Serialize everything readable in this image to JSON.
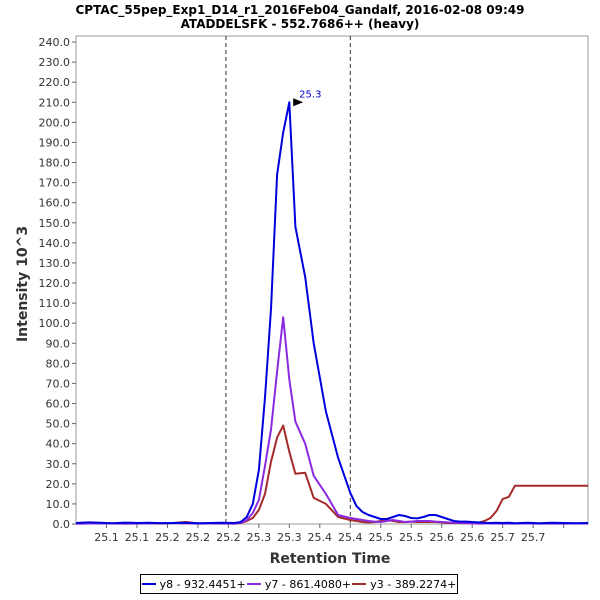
{
  "chart_data": {
    "type": "line",
    "title": "CPTAC_55pep_Exp1_D14_r1_2016Feb04_Gandalf, 2016-02-08 09:49",
    "subtitle": "ATADDELSFK - 552.7686++ (heavy)",
    "xlabel": "Retention Time",
    "ylabel": "Intensity 10^3",
    "xlim": [
      25.0,
      25.84
    ],
    "ylim": [
      0,
      243
    ],
    "x_tick_values": [
      25.05,
      25.1,
      25.15,
      25.2,
      25.25,
      25.3,
      25.35,
      25.4,
      25.45,
      25.5,
      25.55,
      25.6,
      25.65,
      25.7,
      25.75,
      25.8
    ],
    "x_tick_labels": [
      "25.1",
      "25.1",
      "25.2",
      "25.2",
      "25.2",
      "25.3",
      "25.3",
      "25.4",
      "25.4",
      "25.5",
      "25.5",
      "25.6",
      "25.6",
      "25.7",
      "25.7",
      ""
    ],
    "y_ticks": [
      0,
      10,
      20,
      30,
      40,
      50,
      60,
      70,
      80,
      90,
      100,
      110,
      120,
      130,
      140,
      150,
      160,
      170,
      180,
      190,
      200,
      210,
      220,
      230,
      240
    ],
    "y_tick_labels": [
      "0.0",
      "10.0",
      "20.0",
      "30.0",
      "40.0",
      "50.0",
      "60.0",
      "70.0",
      "80.0",
      "90.0",
      "100.0",
      "110.0",
      "120.0",
      "130.0",
      "140.0",
      "150.0",
      "160.0",
      "170.0",
      "180.0",
      "190.0",
      "200.0",
      "210.0",
      "220.0",
      "230.0",
      "240.0"
    ],
    "grid": false,
    "legend_position": "bottom",
    "vertical_lines": [
      25.246,
      25.45
    ],
    "peak_annotation": {
      "x": 25.376,
      "y": 210,
      "text": "25.3"
    },
    "series": [
      {
        "name": "y8 - 932.4451+",
        "color": "#0000dd",
        "x": [
          25.0,
          25.02,
          25.04,
          25.06,
          25.08,
          25.1,
          25.12,
          25.14,
          25.16,
          25.18,
          25.2,
          25.22,
          25.24,
          25.26,
          25.27,
          25.28,
          25.29,
          25.3,
          25.31,
          25.32,
          25.33,
          25.34,
          25.35,
          25.36,
          25.376,
          25.39,
          25.41,
          25.43,
          25.45,
          25.46,
          25.47,
          25.48,
          25.49,
          25.5,
          25.51,
          25.52,
          25.53,
          25.54,
          25.55,
          25.56,
          25.57,
          25.58,
          25.59,
          25.6,
          25.61,
          25.62,
          25.63,
          25.64,
          25.65,
          25.66,
          25.67,
          25.68,
          25.69,
          25.7,
          25.71,
          25.72,
          25.73,
          25.74,
          25.75,
          25.76,
          25.78,
          25.8,
          25.82,
          25.84
        ],
        "y": [
          0.5,
          0.8,
          0.6,
          0.4,
          0.7,
          0.5,
          0.6,
          0.4,
          0.5,
          0.6,
          0.4,
          0.5,
          0.6,
          0.5,
          1.0,
          3.5,
          10.0,
          27.0,
          63.0,
          107.0,
          174.0,
          195.0,
          210.0,
          148.0,
          123.0,
          90.0,
          56.0,
          33.0,
          15.5,
          9.0,
          6.0,
          4.5,
          3.5,
          2.5,
          2.5,
          3.5,
          4.5,
          4.0,
          3.0,
          2.8,
          3.5,
          4.5,
          4.5,
          3.5,
          2.5,
          1.5,
          1.2,
          1.2,
          1.0,
          0.8,
          0.6,
          0.5,
          0.6,
          0.5,
          0.6,
          0.4,
          0.5,
          0.6,
          0.5,
          0.4,
          0.6,
          0.5,
          0.4,
          0.5
        ]
      },
      {
        "name": "y7 - 861.4080+",
        "color": "#8a2be2",
        "x": [
          25.0,
          25.04,
          25.08,
          25.12,
          25.16,
          25.2,
          25.24,
          25.26,
          25.27,
          25.28,
          25.29,
          25.3,
          25.31,
          25.32,
          25.33,
          25.34,
          25.35,
          25.36,
          25.376,
          25.39,
          25.41,
          25.43,
          25.45,
          25.46,
          25.47,
          25.48,
          25.49,
          25.5,
          25.51,
          25.52,
          25.53,
          25.54,
          25.55,
          25.56,
          25.57,
          25.58,
          25.59,
          25.6,
          25.61,
          25.62,
          25.63,
          25.64,
          25.65,
          25.66,
          25.68,
          25.7,
          25.72,
          25.74,
          25.76,
          25.78,
          25.8,
          25.82,
          25.84
        ],
        "y": [
          0.2,
          0.3,
          0.2,
          0.3,
          0.5,
          0.2,
          0.3,
          0.2,
          0.5,
          2.0,
          5.5,
          12.0,
          29.0,
          47.0,
          76.0,
          103.0,
          72.0,
          51.0,
          40.0,
          24.0,
          15.0,
          4.5,
          3.0,
          2.5,
          2.0,
          1.5,
          1.2,
          1.0,
          1.5,
          2.0,
          1.5,
          1.0,
          1.2,
          1.5,
          1.5,
          1.5,
          1.2,
          1.0,
          0.8,
          0.6,
          0.5,
          0.4,
          0.3,
          0.2,
          0.3,
          0.2,
          0.2,
          0.3,
          0.2,
          0.2,
          0.2,
          0.3,
          0.2
        ]
      },
      {
        "name": "y3 - 389.2274+",
        "color": "#a52a2a",
        "x": [
          25.0,
          25.04,
          25.08,
          25.12,
          25.16,
          25.18,
          25.2,
          25.24,
          25.26,
          25.27,
          25.28,
          25.29,
          25.3,
          25.31,
          25.32,
          25.33,
          25.34,
          25.35,
          25.36,
          25.376,
          25.39,
          25.41,
          25.43,
          25.45,
          25.46,
          25.47,
          25.48,
          25.49,
          25.5,
          25.51,
          25.52,
          25.53,
          25.54,
          25.55,
          25.56,
          25.57,
          25.58,
          25.59,
          25.6,
          25.61,
          25.62,
          25.63,
          25.64,
          25.65,
          25.66,
          25.67,
          25.68,
          25.69,
          25.7,
          25.71,
          25.72,
          25.73,
          25.74,
          25.76,
          25.78,
          25.8,
          25.82,
          25.84
        ],
        "y": [
          0.2,
          0.3,
          0.2,
          0.3,
          0.5,
          1.0,
          0.3,
          0.2,
          0.2,
          0.5,
          1.5,
          3.0,
          7.0,
          15.0,
          31.0,
          43.0,
          49.0,
          36.0,
          25.0,
          25.5,
          13.0,
          10.0,
          3.5,
          2.0,
          1.5,
          1.0,
          0.8,
          1.0,
          1.5,
          2.0,
          1.5,
          1.0,
          1.0,
          1.2,
          1.0,
          1.0,
          1.0,
          1.0,
          0.8,
          0.5,
          0.5,
          0.6,
          0.5,
          0.5,
          0.6,
          1.5,
          3.0,
          6.5,
          12.5,
          13.5,
          19.0,
          19.0,
          19.0,
          19.0,
          19.0,
          19.0,
          19.0,
          19.0
        ]
      }
    ]
  }
}
